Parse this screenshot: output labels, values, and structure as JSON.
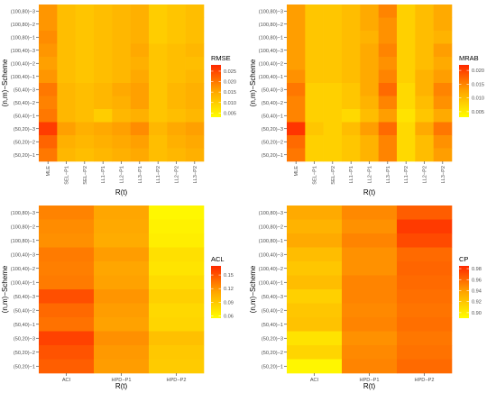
{
  "chart_data": [
    {
      "type": "heatmap",
      "xlabel": "R(t)",
      "ylabel": "(n,m)−Scheme",
      "x": [
        "MLE",
        "SEL−P1",
        "SEL−P2",
        "LL1−P1",
        "LL2−P1",
        "LL3−P1",
        "LL1−P2",
        "LL2−P2",
        "LL3−P2"
      ],
      "y": [
        "(100,80)−3",
        "(100,80)−2",
        "(100,80)−1",
        "(100,40)−3",
        "(100,40)−2",
        "(100,40)−1",
        "(50,40)−3",
        "(50,40)−2",
        "(50,40)−1",
        "(50,20)−3",
        "(50,20)−2",
        "(50,20)−1"
      ],
      "legend": {
        "title": "RMSE",
        "ticks": [
          "0.025",
          "0.020",
          "0.015",
          "0.010",
          "0.005"
        ],
        "tick_values": [
          0.025,
          0.02,
          0.015,
          0.01,
          0.005
        ],
        "range": [
          0.003,
          0.028
        ]
      },
      "values": [
        [
          0.017,
          0.012,
          0.011,
          0.012,
          0.013,
          0.014,
          0.01,
          0.011,
          0.012
        ],
        [
          0.017,
          0.012,
          0.011,
          0.012,
          0.013,
          0.014,
          0.01,
          0.011,
          0.012
        ],
        [
          0.018,
          0.012,
          0.011,
          0.012,
          0.013,
          0.014,
          0.01,
          0.011,
          0.012
        ],
        [
          0.017,
          0.012,
          0.011,
          0.012,
          0.013,
          0.015,
          0.011,
          0.012,
          0.013
        ],
        [
          0.016,
          0.012,
          0.011,
          0.012,
          0.013,
          0.014,
          0.011,
          0.012,
          0.012
        ],
        [
          0.017,
          0.012,
          0.011,
          0.012,
          0.013,
          0.015,
          0.011,
          0.012,
          0.013
        ],
        [
          0.02,
          0.013,
          0.012,
          0.013,
          0.015,
          0.016,
          0.011,
          0.013,
          0.014
        ],
        [
          0.019,
          0.013,
          0.012,
          0.013,
          0.014,
          0.016,
          0.011,
          0.013,
          0.014
        ],
        [
          0.02,
          0.013,
          0.012,
          0.01,
          0.013,
          0.014,
          0.011,
          0.012,
          0.013
        ],
        [
          0.026,
          0.016,
          0.014,
          0.015,
          0.016,
          0.018,
          0.013,
          0.015,
          0.016
        ],
        [
          0.022,
          0.014,
          0.013,
          0.014,
          0.015,
          0.016,
          0.012,
          0.014,
          0.015
        ],
        [
          0.02,
          0.013,
          0.012,
          0.013,
          0.014,
          0.015,
          0.012,
          0.013,
          0.014
        ]
      ]
    },
    {
      "type": "heatmap",
      "xlabel": "R(t)",
      "ylabel": "(n,m)−Scheme",
      "x": [
        "MLE",
        "SEL−P1",
        "SEL−P2",
        "LL1−P1",
        "LL2−P1",
        "LL3−P1",
        "LL1−P2",
        "LL2−P2",
        "LL3−P2"
      ],
      "y": [
        "(100,80)−3",
        "(100,80)−2",
        "(100,80)−1",
        "(100,40)−3",
        "(100,40)−2",
        "(100,40)−1",
        "(50,40)−3",
        "(50,40)−2",
        "(50,40)−1",
        "(50,20)−3",
        "(50,20)−2",
        "(50,20)−1"
      ],
      "legend": {
        "title": "MRAB",
        "ticks": [
          "0.020",
          "0.015",
          "0.010",
          "0.005"
        ],
        "tick_values": [
          0.02,
          0.015,
          0.01,
          0.005
        ],
        "range": [
          0.003,
          0.022
        ]
      },
      "values": [
        [
          0.013,
          0.009,
          0.009,
          0.01,
          0.012,
          0.015,
          0.008,
          0.01,
          0.012
        ],
        [
          0.013,
          0.009,
          0.009,
          0.01,
          0.012,
          0.014,
          0.008,
          0.01,
          0.012
        ],
        [
          0.013,
          0.009,
          0.009,
          0.01,
          0.011,
          0.014,
          0.008,
          0.01,
          0.011
        ],
        [
          0.013,
          0.009,
          0.009,
          0.01,
          0.012,
          0.015,
          0.008,
          0.01,
          0.013
        ],
        [
          0.013,
          0.009,
          0.009,
          0.01,
          0.012,
          0.014,
          0.008,
          0.01,
          0.012
        ],
        [
          0.014,
          0.009,
          0.009,
          0.01,
          0.012,
          0.015,
          0.008,
          0.011,
          0.013
        ],
        [
          0.016,
          0.008,
          0.008,
          0.009,
          0.012,
          0.017,
          0.007,
          0.011,
          0.015
        ],
        [
          0.015,
          0.008,
          0.008,
          0.009,
          0.011,
          0.015,
          0.007,
          0.01,
          0.014
        ],
        [
          0.015,
          0.008,
          0.008,
          0.007,
          0.01,
          0.013,
          0.006,
          0.009,
          0.012
        ],
        [
          0.021,
          0.009,
          0.008,
          0.01,
          0.013,
          0.017,
          0.007,
          0.012,
          0.016
        ],
        [
          0.017,
          0.008,
          0.008,
          0.009,
          0.011,
          0.015,
          0.007,
          0.01,
          0.014
        ],
        [
          0.016,
          0.008,
          0.008,
          0.009,
          0.011,
          0.015,
          0.007,
          0.01,
          0.013
        ]
      ]
    },
    {
      "type": "heatmap",
      "xlabel": "R(t)",
      "ylabel": "(n,m)−Scheme",
      "x": [
        "ACI",
        "HPD−P1",
        "HPD−P2"
      ],
      "y": [
        "(100,80)−3",
        "(100,80)−2",
        "(100,80)−1",
        "(100,40)−3",
        "(100,40)−2",
        "(100,40)−1",
        "(50,40)−3",
        "(50,40)−2",
        "(50,40)−1",
        "(50,20)−3",
        "(50,20)−2",
        "(50,20)−1"
      ],
      "legend": {
        "title": "ACL",
        "ticks": [
          "0.15",
          "0.12",
          "0.09",
          "0.06"
        ],
        "tick_values": [
          0.15,
          0.12,
          0.09,
          0.06
        ],
        "range": [
          0.055,
          0.17
        ]
      },
      "values": [
        [
          0.128,
          0.112,
          0.06
        ],
        [
          0.124,
          0.11,
          0.063
        ],
        [
          0.122,
          0.108,
          0.066
        ],
        [
          0.132,
          0.116,
          0.075
        ],
        [
          0.13,
          0.112,
          0.072
        ],
        [
          0.132,
          0.114,
          0.078
        ],
        [
          0.152,
          0.12,
          0.085
        ],
        [
          0.14,
          0.116,
          0.08
        ],
        [
          0.136,
          0.114,
          0.082
        ],
        [
          0.158,
          0.122,
          0.095
        ],
        [
          0.15,
          0.118,
          0.09
        ],
        [
          0.145,
          0.116,
          0.088
        ]
      ]
    },
    {
      "type": "heatmap",
      "xlabel": "R(t)",
      "ylabel": "(n,m)−Scheme",
      "x": [
        "ACI",
        "HPD−P1",
        "HPD−P2"
      ],
      "y": [
        "(100,80)−3",
        "(100,80)−2",
        "(100,80)−1",
        "(100,40)−3",
        "(100,40)−2",
        "(100,40)−1",
        "(50,40)−3",
        "(50,40)−2",
        "(50,40)−1",
        "(50,20)−3",
        "(50,20)−2",
        "(50,20)−1"
      ],
      "legend": {
        "title": "CP",
        "ticks": [
          "0.98",
          "0.96",
          "0.94",
          "0.92",
          "0.90"
        ],
        "tick_values": [
          0.98,
          0.96,
          0.94,
          0.92,
          0.9
        ],
        "range": [
          0.89,
          0.985
        ]
      },
      "values": [
        [
          0.935,
          0.948,
          0.965
        ],
        [
          0.93,
          0.945,
          0.978
        ],
        [
          0.935,
          0.95,
          0.972
        ],
        [
          0.925,
          0.945,
          0.96
        ],
        [
          0.92,
          0.945,
          0.962
        ],
        [
          0.925,
          0.95,
          0.96
        ],
        [
          0.915,
          0.95,
          0.958
        ],
        [
          0.92,
          0.948,
          0.956
        ],
        [
          0.922,
          0.95,
          0.958
        ],
        [
          0.905,
          0.945,
          0.955
        ],
        [
          0.912,
          0.948,
          0.957
        ],
        [
          0.895,
          0.95,
          0.96
        ]
      ]
    }
  ]
}
